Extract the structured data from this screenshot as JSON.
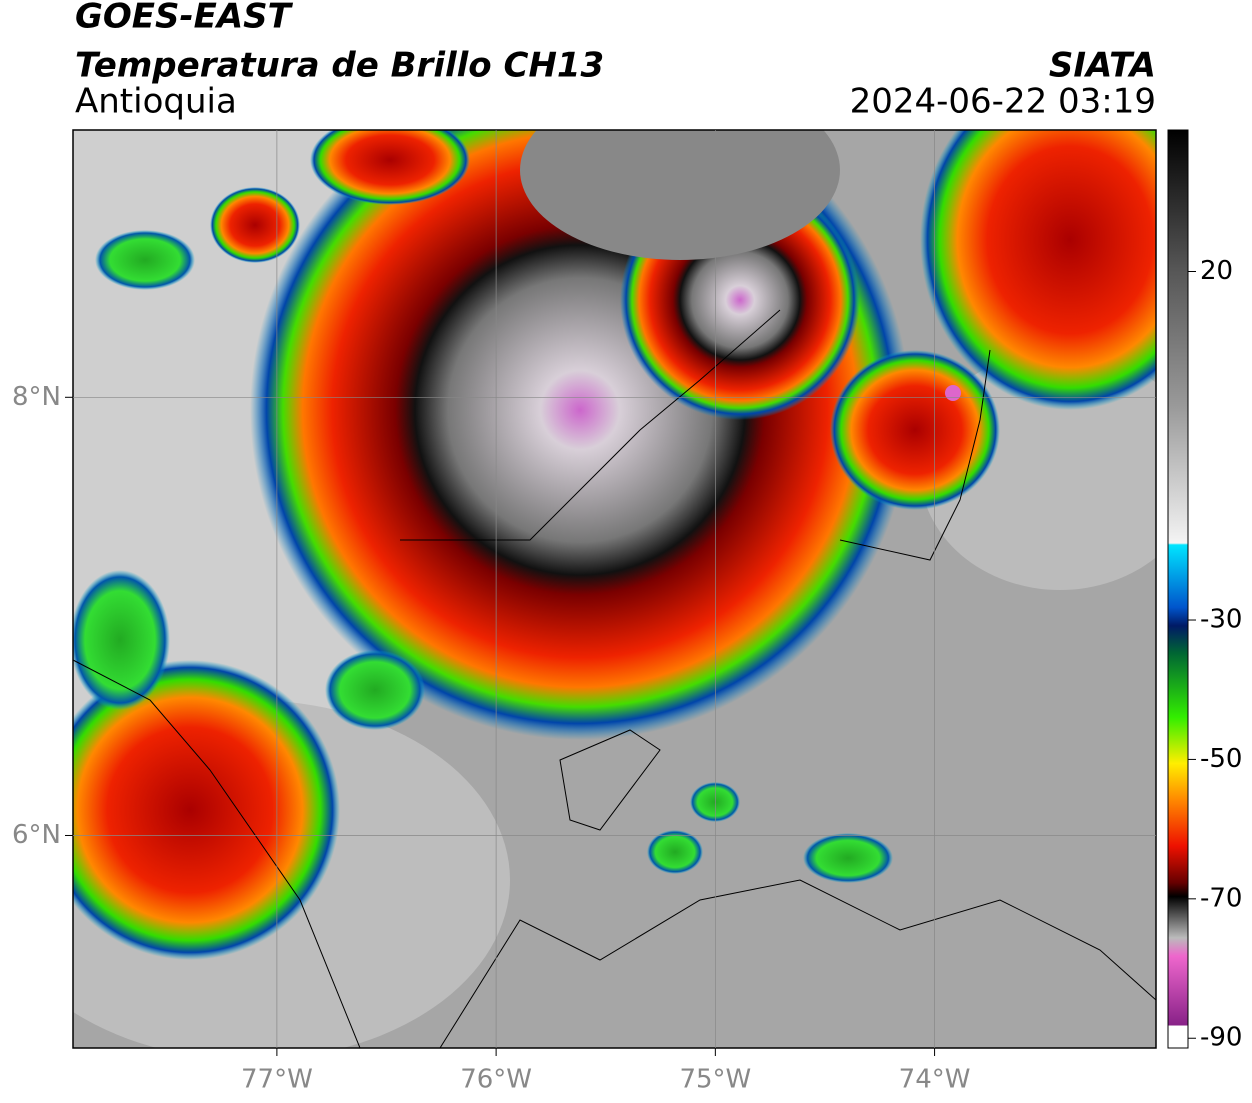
{
  "header": {
    "title": "GOES-EAST",
    "subtitle": "Temperatura de Brillo CH13",
    "region": "Antioquia",
    "source": "SIATA",
    "timestamp": "2024-06-22 03:19"
  },
  "map": {
    "lonlim": [
      -77.93,
      -72.99
    ],
    "latlim": [
      5.03,
      9.22
    ],
    "lon_ticks": [
      {
        "value": -77,
        "label": "77°W"
      },
      {
        "value": -76,
        "label": "76°W"
      },
      {
        "value": -75,
        "label": "75°W"
      },
      {
        "value": -74,
        "label": "74°W"
      }
    ],
    "lat_ticks": [
      {
        "value": 8,
        "label": "8°N"
      },
      {
        "value": 6,
        "label": "6°N"
      }
    ],
    "grid": true
  },
  "colorbar": {
    "lim": [
      -91.4,
      40.3
    ],
    "ticks": [
      20,
      -30,
      -50,
      -70,
      -90
    ]
  }
}
